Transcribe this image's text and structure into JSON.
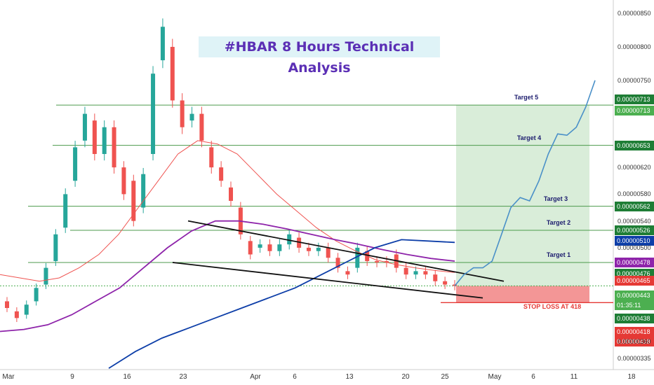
{
  "title": "#HBAR 8 Hours Technical Analysis",
  "chart_data": {
    "type": "candlestick",
    "y_axis": {
      "min": 3.18e-06,
      "max": 8.7e-06,
      "ticks": [
        "0.00000850",
        "0.00000800",
        "0.00000750",
        "0.00000620",
        "0.00000580",
        "0.00000540",
        "0.00000500",
        "0.00000360",
        "0.00000335"
      ]
    },
    "x_axis": {
      "ticks": [
        "Mar",
        "9",
        "16",
        "23",
        "Apr",
        "6",
        "13",
        "20",
        "25",
        "May",
        "6",
        "11",
        "18"
      ]
    },
    "targets": [
      {
        "name": "Target 1",
        "value": 4.78e-06
      },
      {
        "name": "Target 2",
        "value": 5.26e-06
      },
      {
        "name": "Target 3",
        "value": 5.62e-06
      },
      {
        "name": "Target 4",
        "value": 6.53e-06
      },
      {
        "name": "Target 5",
        "value": 7.13e-06
      }
    ],
    "stop_loss": {
      "label": "STOP LOSS AT 418",
      "value": 4.18e-06
    },
    "entry_price": 4.43e-06,
    "price_labels": [
      {
        "text": "0.00000713",
        "value": 7.13e-06,
        "bg": "#1e7d35",
        "fg": "#ffffff",
        "off": -8
      },
      {
        "text": "0.00000713",
        "value": 7.13e-06,
        "bg": "#4caf50",
        "fg": "#ffffff",
        "off": 8
      },
      {
        "text": "0.00000653",
        "value": 6.53e-06,
        "bg": "#1e7d35",
        "fg": "#ffffff",
        "off": 0
      },
      {
        "text": "0.00000562",
        "value": 5.62e-06,
        "bg": "#1e7d35",
        "fg": "#ffffff",
        "off": 0
      },
      {
        "text": "0.00000526",
        "value": 5.26e-06,
        "bg": "#1e7d35",
        "fg": "#ffffff",
        "off": 0
      },
      {
        "text": "0.00000510",
        "value": 5.1e-06,
        "bg": "#0d3ea8",
        "fg": "#ffffff",
        "off": 0
      },
      {
        "text": "0.00000478",
        "value": 4.78e-06,
        "bg": "#8e24aa",
        "fg": "#ffffff",
        "off": 0
      },
      {
        "text": "0.00000476",
        "value": 4.76e-06,
        "bg": "#1e7d35",
        "fg": "#ffffff",
        "off": 14
      },
      {
        "text": "0.00000465",
        "value": 4.65e-06,
        "bg": "#e53935",
        "fg": "#ffffff",
        "off": 14
      },
      {
        "text": "0.00000443",
        "value": 4.43e-06,
        "bg": "#4caf50",
        "fg": "#ffffff",
        "off": 14
      },
      {
        "text": "01:35:11",
        "value": 4.43e-06,
        "bg": "#4caf50",
        "fg": "#ffffff",
        "off": 28
      },
      {
        "text": "0.00000438",
        "value": 4.38e-06,
        "bg": "#1e7d35",
        "fg": "#ffffff",
        "off": 42
      },
      {
        "text": "0.00000418",
        "value": 4.18e-06,
        "bg": "#e53935",
        "fg": "#ffffff",
        "off": 42
      },
      {
        "text": "0.00000418",
        "value": 4.18e-06,
        "bg": "#e53935",
        "fg": "#ffffff",
        "off": 56
      }
    ],
    "projection": [
      4.43e-06,
      4.6e-06,
      4.7e-06,
      4.7e-06,
      4.8e-06,
      5.2e-06,
      5.6e-06,
      5.75e-06,
      5.7e-06,
      6e-06,
      6.4e-06,
      6.7e-06,
      6.68e-06,
      6.8e-06,
      7.1e-06,
      7.5e-06
    ],
    "candles": [
      [
        4.2e-06,
        4.1e-06
      ],
      [
        4.05e-06,
        3.95e-06
      ],
      [
        4e-06,
        4.15e-06
      ],
      [
        4.2e-06,
        4.4e-06
      ],
      [
        4.45e-06,
        4.7e-06
      ],
      [
        4.8e-06,
        5.2e-06
      ],
      [
        5.3e-06,
        5.8e-06
      ],
      [
        6e-06,
        6.5e-06
      ],
      [
        6.6e-06,
        7e-06
      ],
      [
        6.9e-06,
        6.4e-06
      ],
      [
        6.4e-06,
        6.8e-06
      ],
      [
        6.8e-06,
        6.2e-06
      ],
      [
        6.2e-06,
        5.8e-06
      ],
      [
        6e-06,
        5.4e-06
      ],
      [
        5.6e-06,
        6.1e-06
      ],
      [
        6.4e-06,
        7.6e-06
      ],
      [
        7.8e-06,
        8.3e-06
      ],
      [
        8e-06,
        7.2e-06
      ],
      [
        7.2e-06,
        6.8e-06
      ],
      [
        6.9e-06,
        7e-06
      ],
      [
        7e-06,
        6.6e-06
      ],
      [
        6.5e-06,
        6.2e-06
      ],
      [
        6.2e-06,
        6e-06
      ],
      [
        5.9e-06,
        5.7e-06
      ],
      [
        5.6e-06,
        5.2e-06
      ],
      [
        5.1e-06,
        4.9e-06
      ],
      [
        5e-06,
        5.05e-06
      ],
      [
        5.05e-06,
        4.95e-06
      ],
      [
        4.95e-06,
        5.05e-06
      ],
      [
        5.05e-06,
        5.2e-06
      ],
      [
        5.15e-06,
        5e-06
      ],
      [
        5e-06,
        4.95e-06
      ],
      [
        4.95e-06,
        5e-06
      ],
      [
        5e-06,
        4.85e-06
      ],
      [
        4.85e-06,
        4.7e-06
      ],
      [
        4.65e-06,
        4.6e-06
      ],
      [
        4.7e-06,
        5e-06
      ],
      [
        4.95e-06,
        4.8e-06
      ],
      [
        4.8e-06,
        4.78e-06
      ],
      [
        4.8e-06,
        4.78e-06
      ],
      [
        4.9e-06,
        4.7e-06
      ],
      [
        4.7e-06,
        4.6e-06
      ],
      [
        4.6e-06,
        4.65e-06
      ],
      [
        4.65e-06,
        4.6e-06
      ],
      [
        4.6e-06,
        4.5e-06
      ],
      [
        4.5e-06,
        4.45e-06
      ],
      [
        4.45e-06,
        4.43e-06
      ]
    ],
    "series": [
      {
        "name": "ma-red",
        "color": "#ef5350",
        "values": [
          4.6e-06,
          4.55e-06,
          4.5e-06,
          4.55e-06,
          4.7e-06,
          4.9e-06,
          5.2e-06,
          5.6e-06,
          6e-06,
          6.4e-06,
          6.6e-06,
          6.55e-06,
          6.4e-06,
          6.1e-06,
          5.8e-06,
          5.55e-06,
          5.3e-06,
          5.1e-06,
          4.95e-06,
          4.82e-06,
          4.75e-06,
          4.7e-06,
          4.66e-06,
          4.63e-06
        ]
      },
      {
        "name": "ma-purple",
        "color": "#8e24aa",
        "values": [
          3.75e-06,
          3.78e-06,
          3.85e-06,
          4e-06,
          4.2e-06,
          4.4e-06,
          4.7e-06,
          5e-06,
          5.25e-06,
          5.4e-06,
          5.4e-06,
          5.35e-06,
          5.28e-06,
          5.2e-06,
          5.12e-06,
          5.05e-06,
          4.97e-06,
          4.9e-06,
          4.84e-06,
          4.8e-06
        ]
      },
      {
        "name": "ma-blue",
        "color": "#0d3ea8",
        "values": [
          3.2e-06,
          3.45e-06,
          3.65e-06,
          3.8e-06,
          3.95e-06,
          4.1e-06,
          4.25e-06,
          4.4e-06,
          4.6e-06,
          4.8e-06,
          5e-06,
          5.12e-06,
          5.1e-06,
          5.08e-06
        ]
      }
    ]
  }
}
